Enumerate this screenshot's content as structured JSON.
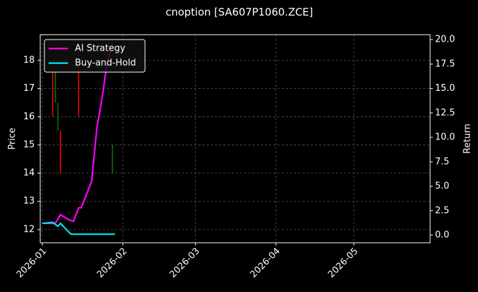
{
  "chart_data": {
    "type": "line",
    "title": "cnoption [SA607P1060.ZCE]",
    "ylabel": "Price",
    "y2label": "Return",
    "xlim": [
      -0.8,
      149.4
    ],
    "xticks": [
      {
        "value": 0,
        "label": "2026-01"
      },
      {
        "value": 31,
        "label": "2026-02"
      },
      {
        "value": 59,
        "label": "2026-03"
      },
      {
        "value": 90,
        "label": "2026-04"
      },
      {
        "value": 120,
        "label": "2026-05"
      }
    ],
    "ylim": [
      11.53,
      18.91
    ],
    "yticks": [
      12,
      13,
      14,
      15,
      16,
      17,
      18
    ],
    "y2lim": [
      -0.78,
      20.5
    ],
    "y2ticks": [
      {
        "value": 0,
        "label": "0.0"
      },
      2.5,
      {
        "value": 5,
        "label": "5.0"
      },
      7.5,
      {
        "value": 10,
        "label": "10.0"
      },
      12.5,
      {
        "value": 15,
        "label": "15.0"
      },
      17.5,
      {
        "value": 20,
        "label": "20.0"
      }
    ],
    "grid": true,
    "legend": "upper left",
    "candles": {
      "x": [
        4,
        5,
        6,
        7,
        14,
        27
      ],
      "open": [
        17.6,
        16.5,
        15.5,
        15.5,
        17.8,
        14.0
      ],
      "close": [
        16.0,
        17.6,
        16.5,
        14.0,
        16.0,
        15.0
      ],
      "up_color": "#008000",
      "down_color": "#ff0000"
    },
    "series": [
      {
        "name": "AI Strategy",
        "color": "#ff00ff",
        "axis": "y2",
        "x": [
          0,
          4,
          5,
          7,
          10,
          12,
          14,
          15,
          19,
          21,
          23,
          25,
          27
        ],
        "values": [
          1.2,
          1.2,
          1.2,
          2.1,
          1.6,
          1.4,
          2.8,
          2.8,
          5.5,
          10.9,
          14.0,
          17.7,
          19.6
        ]
      },
      {
        "name": "Buy-and-Hold",
        "color": "#00e5ee",
        "axis": "y2",
        "x": [
          0,
          4,
          6,
          7,
          11,
          28
        ],
        "values": [
          1.2,
          1.3,
          0.9,
          1.2,
          0.1,
          0.1
        ]
      }
    ]
  }
}
